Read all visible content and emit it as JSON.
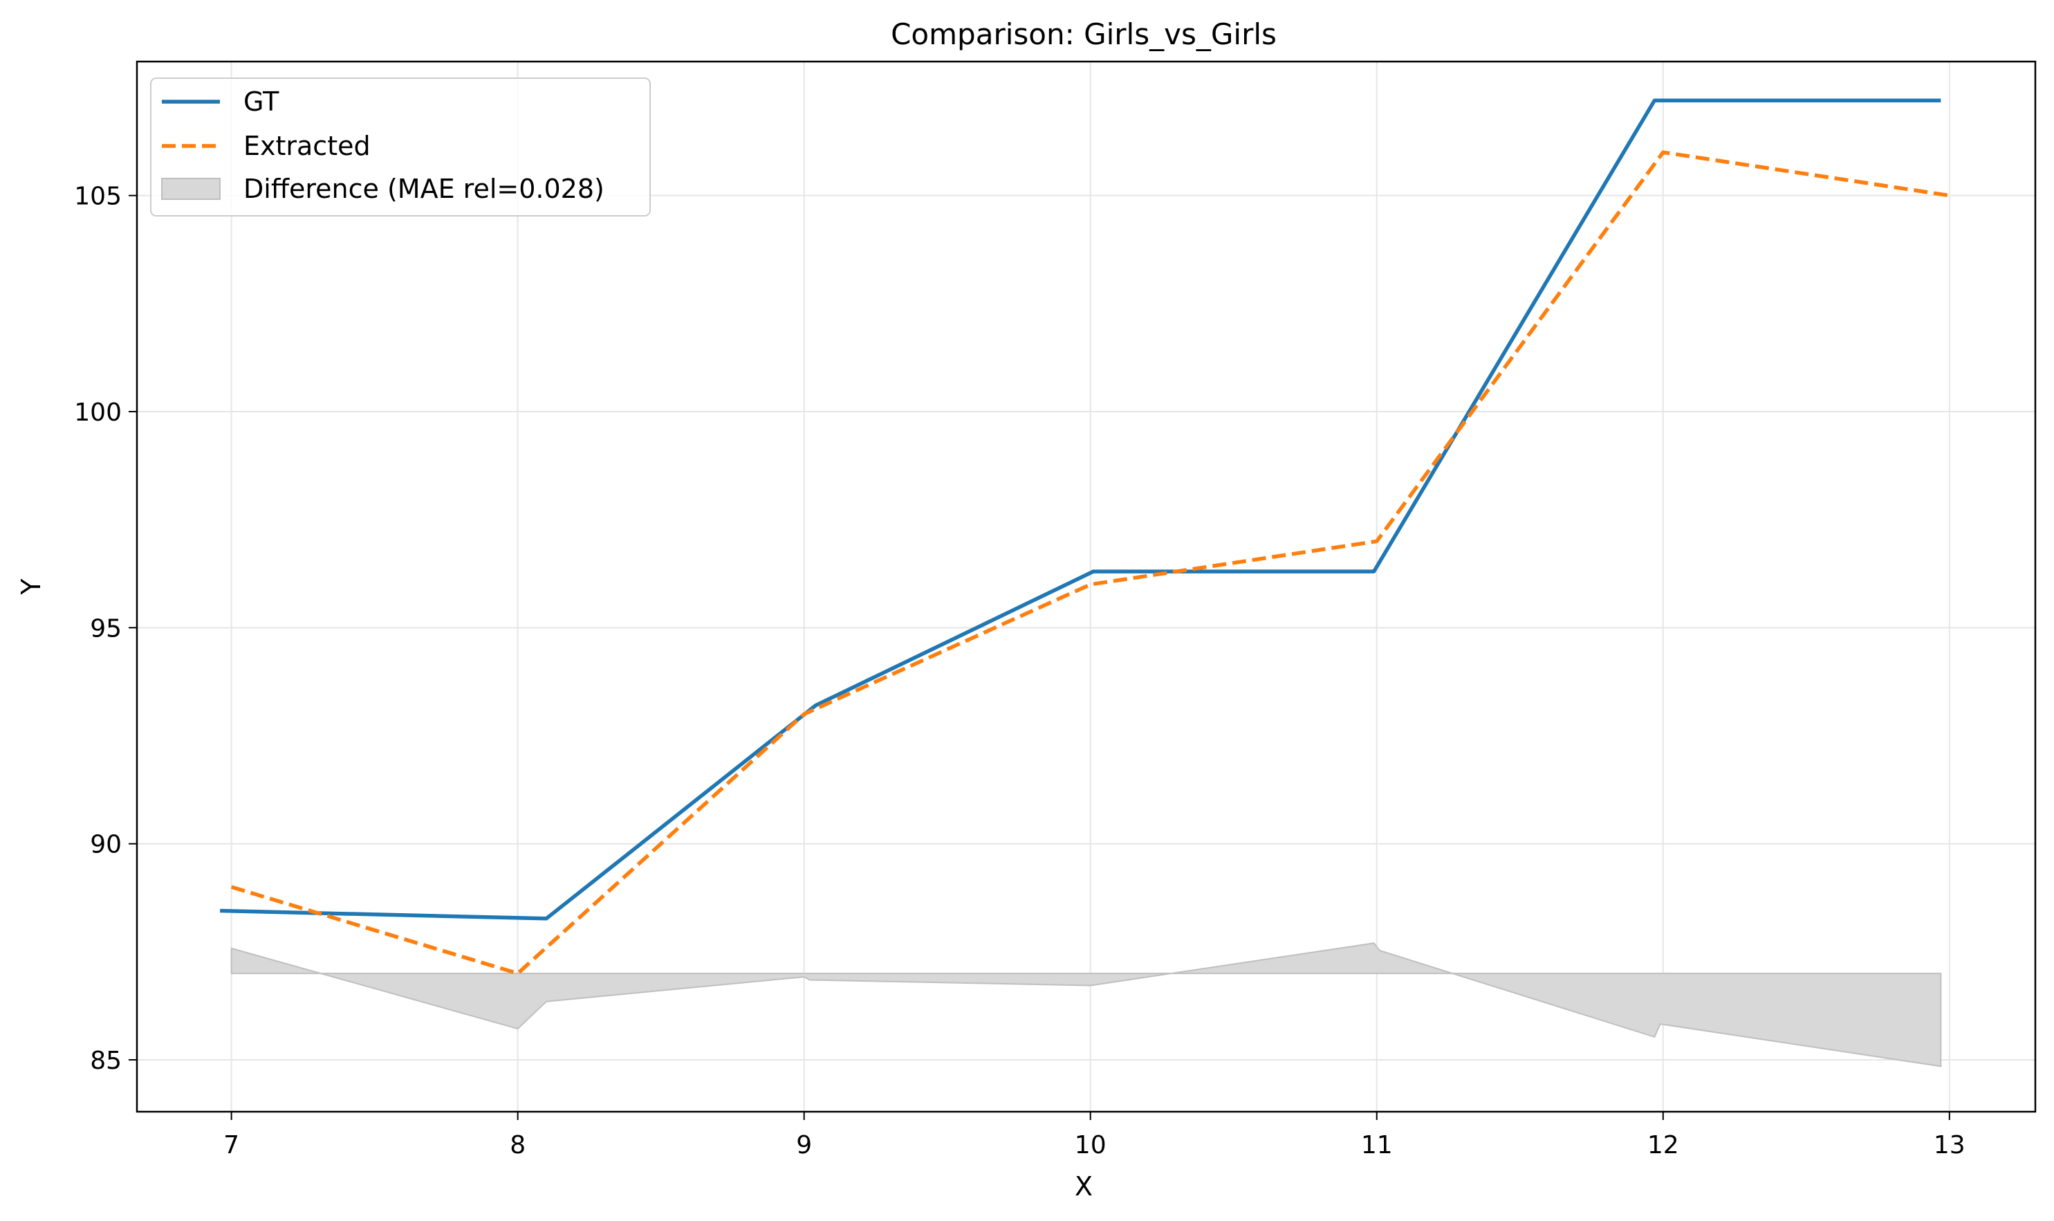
{
  "chart_data": {
    "type": "line",
    "title": "Comparison: Girls_vs_Girls",
    "xlabel": "X",
    "ylabel": "Y",
    "xlim": [
      6.67,
      13.3
    ],
    "ylim": [
      83.8,
      108.1
    ],
    "xticks": [
      7,
      8,
      9,
      10,
      11,
      12,
      13
    ],
    "yticks": [
      85,
      90,
      95,
      100,
      105
    ],
    "grid": true,
    "legend_position": "top-left",
    "series": [
      {
        "name": "GT",
        "style": "solid",
        "color": "#1f77b4",
        "x": [
          6.96,
          8.1,
          9.04,
          10.01,
          10.99,
          11.97,
          12.97
        ],
        "y": [
          88.45,
          88.27,
          93.2,
          96.3,
          96.3,
          107.2,
          107.2
        ]
      },
      {
        "name": "Extracted",
        "style": "dashed",
        "color": "#ff7f0e",
        "x": [
          7.0,
          8.0,
          9.0,
          10.0,
          11.0,
          12.0,
          13.0
        ],
        "y": [
          89.0,
          87.0,
          93.0,
          96.0,
          97.0,
          106.0,
          105.0
        ]
      }
    ],
    "difference": {
      "name": "Difference (MAE rel=0.028)",
      "color": "#d8d8d8",
      "edge_color": "#bfbfbf",
      "baseline": 87.0,
      "x": [
        7.0,
        8.0,
        8.1,
        9.0,
        9.02,
        10.0,
        10.99,
        11.01,
        11.97,
        11.99,
        12.97
      ],
      "y": [
        87.58,
        85.72,
        86.35,
        86.92,
        86.85,
        86.72,
        87.7,
        87.53,
        85.53,
        85.83,
        84.85
      ]
    }
  }
}
